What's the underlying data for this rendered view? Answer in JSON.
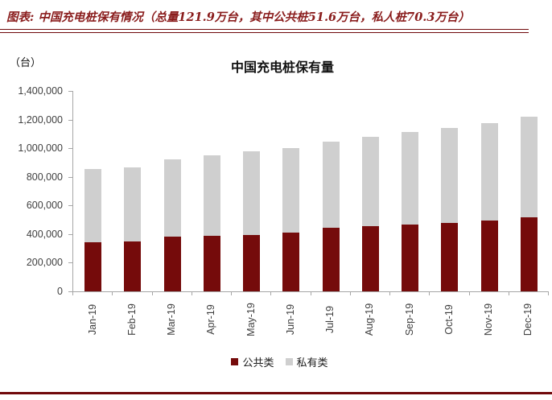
{
  "figure_header": {
    "caption": "图表: 中国充电桩保有情况（总量121.9万台，其中公共桩51.6万台，私人桩70.3万台）"
  },
  "chart": {
    "unit_label": "（台）",
    "y_tick_labels": [
      "0",
      "200,000",
      "400,000",
      "600,000",
      "800,000",
      "1,000,000",
      "1,200,000",
      "1,400,000"
    ]
  },
  "chart_data": {
    "type": "bar",
    "stacked": true,
    "title": "中国充电桩保有量",
    "unit": "台",
    "xlabel": "",
    "ylabel": "台",
    "categories": [
      "Jan-19",
      "Feb-19",
      "Mar-19",
      "Apr-19",
      "May-19",
      "Jun-19",
      "Jul-19",
      "Aug-19",
      "Sep-19",
      "Oct-19",
      "Nov-19",
      "Dec-19"
    ],
    "series": [
      {
        "name": "公共类",
        "color": "#750b0b",
        "values": [
          342000,
          347000,
          384000,
          387000,
          395000,
          412000,
          447000,
          456000,
          466000,
          478000,
          496000,
          516000
        ]
      },
      {
        "name": "私有类",
        "color": "#cfcfcf",
        "values": [
          511000,
          519000,
          539000,
          561000,
          581000,
          590000,
          601000,
          624000,
          648000,
          663000,
          678000,
          703000
        ]
      }
    ],
    "totals": [
      853000,
      866000,
      923000,
      948000,
      976000,
      1002000,
      1048000,
      1080000,
      1114000,
      1141000,
      1174000,
      1219000
    ],
    "ylim": [
      0,
      1400000
    ],
    "ytick_step": 200000,
    "grid": false,
    "legend_position": "bottom",
    "x_label_rotation": -90
  },
  "colors": {
    "accent_maroon": "#750b0b",
    "series_gray": "#cfcfcf",
    "header_text": "#8a1d1d",
    "rule": "#70090b",
    "axis_line": "#a6a6a6",
    "tick_text": "#404040"
  }
}
